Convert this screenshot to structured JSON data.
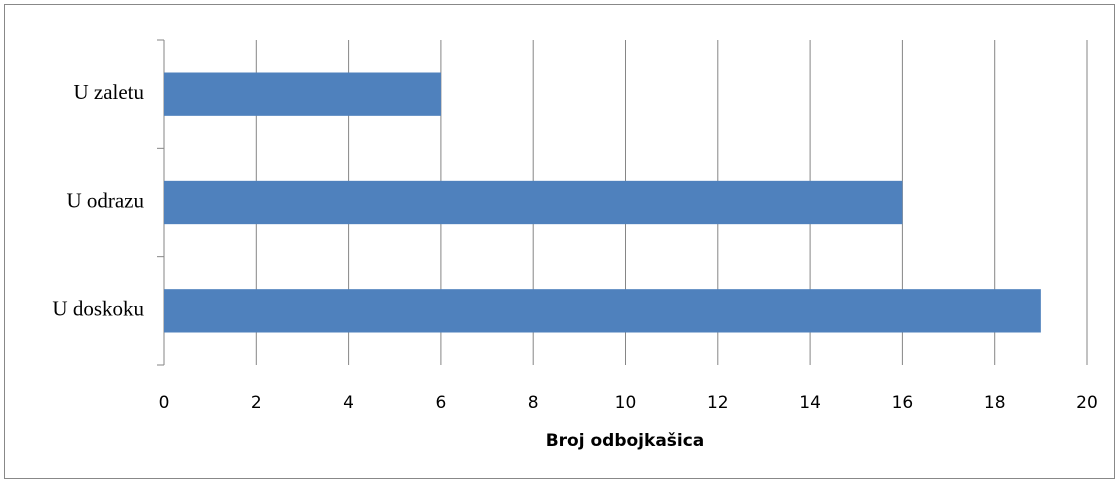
{
  "chart_data": {
    "type": "hbar",
    "categories": [
      "U zaletu",
      "U odrazu",
      "U doskoku"
    ],
    "values": [
      6,
      16,
      19
    ],
    "color": "#4f81bd",
    "xlim": [
      0,
      20
    ],
    "xticks": [
      0,
      2,
      4,
      6,
      8,
      10,
      12,
      14,
      16,
      18,
      20
    ],
    "xlabel": "Broj odbojkašica",
    "grid": true
  }
}
